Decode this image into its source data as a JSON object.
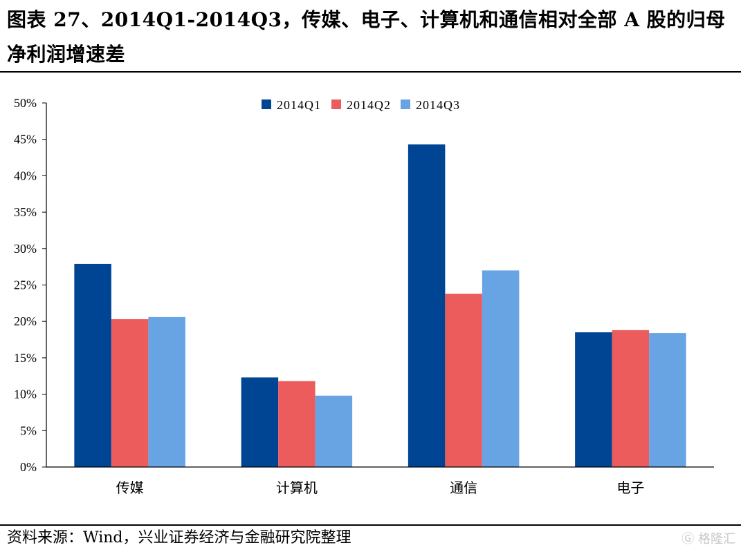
{
  "title": "图表 27、2014Q1-2014Q3，传媒、电子、计算机和通信相对全部 A 股的归母净利润增速差",
  "source": "资料来源：Wind，兴业证券经济与金融研究院整理",
  "watermark": "格隆汇",
  "chart_data": {
    "type": "bar",
    "categories": [
      "传媒",
      "计算机",
      "通信",
      "电子"
    ],
    "series": [
      {
        "name": "2014Q1",
        "color": "#004494",
        "values": [
          27.9,
          12.3,
          44.3,
          18.5
        ]
      },
      {
        "name": "2014Q2",
        "color": "#ec5c5c",
        "values": [
          20.3,
          11.8,
          23.8,
          18.8
        ]
      },
      {
        "name": "2014Q3",
        "color": "#68a4e4",
        "values": [
          20.6,
          9.8,
          27.0,
          18.4
        ]
      }
    ],
    "ylim": [
      0,
      50
    ],
    "yticks": [
      "0%",
      "5%",
      "10%",
      "15%",
      "20%",
      "25%",
      "30%",
      "35%",
      "40%",
      "45%",
      "50%"
    ],
    "legend_position": "top-center",
    "grid": false
  }
}
